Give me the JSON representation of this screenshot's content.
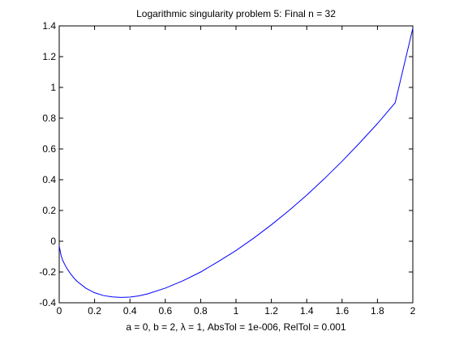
{
  "chart_data": {
    "type": "line",
    "title": "Logarithmic singularity problem 5:   Final n = 32",
    "xlabel": "a = 0,   b = 2,   λ = 1,   AbsTol = 1e-006,   RelTol = 0.001",
    "ylabel": "",
    "xlim": [
      0,
      2
    ],
    "ylim": [
      -0.4,
      1.4
    ],
    "xticks": [
      0,
      0.2,
      0.4,
      0.6,
      0.8,
      1,
      1.2,
      1.4,
      1.6,
      1.8,
      2
    ],
    "xtick_labels": [
      "0",
      "0.2",
      "0.4",
      "0.6",
      "0.8",
      "1",
      "1.2",
      "1.4",
      "1.6",
      "1.8",
      "2"
    ],
    "yticks": [
      -0.4,
      -0.2,
      0,
      0.2,
      0.4,
      0.6,
      0.8,
      1,
      1.2,
      1.4
    ],
    "ytick_labels": [
      "-0.4",
      "-0.2",
      "0",
      "0.2",
      "0.4",
      "0.6",
      "0.8",
      "1",
      "1.2",
      "1.4"
    ],
    "grid": false,
    "series": [
      {
        "color": "#0000ff",
        "x": [
          0,
          0.01,
          0.02,
          0.04,
          0.06,
          0.08,
          0.1,
          0.15,
          0.2,
          0.25,
          0.3,
          0.35,
          0.4,
          0.45,
          0.5,
          0.6,
          0.7,
          0.8,
          0.9,
          1.0,
          1.1,
          1.2,
          1.3,
          1.4,
          1.5,
          1.6,
          1.7,
          1.8,
          1.9,
          2.0
        ],
        "y": [
          -0.03,
          -0.09,
          -0.125,
          -0.17,
          -0.205,
          -0.235,
          -0.26,
          -0.305,
          -0.335,
          -0.353,
          -0.362,
          -0.365,
          -0.363,
          -0.355,
          -0.342,
          -0.305,
          -0.257,
          -0.2,
          -0.132,
          -0.06,
          0.02,
          0.107,
          0.2,
          0.3,
          0.407,
          0.52,
          0.64,
          0.765,
          0.9,
          1.385
        ]
      }
    ]
  }
}
